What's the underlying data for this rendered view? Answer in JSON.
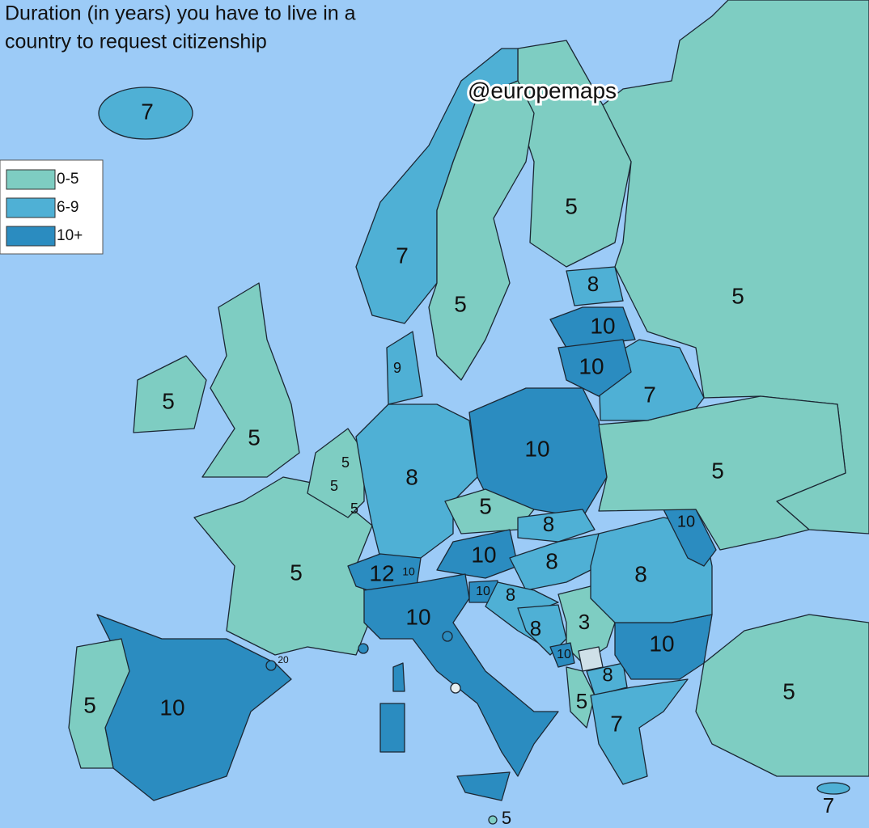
{
  "header": {
    "title_lines": [
      "Duration (in years) you have to live in a",
      "country to request citizenship"
    ],
    "watermark": "@europemaps"
  },
  "legend": {
    "items": [
      {
        "label": "0-5",
        "color": "#7ecdc2"
      },
      {
        "label": "6-9",
        "color": "#4fb0d5"
      },
      {
        "label": "10+",
        "color": "#2b8cc0"
      }
    ]
  },
  "map": {
    "region_labels": [
      "7",
      "7",
      "5",
      "5",
      "5",
      "8",
      "10",
      "10",
      "7",
      "9",
      "5",
      "5",
      "5",
      "5",
      "5",
      "8",
      "10",
      "5",
      "5",
      "8",
      "10",
      "5",
      "12",
      "10",
      "10",
      "8",
      "8",
      "10",
      "8",
      "10",
      "8",
      "3",
      "10",
      "10",
      "20",
      "5",
      "10",
      "8",
      "5",
      "5",
      "7",
      "7",
      "5"
    ]
  }
}
